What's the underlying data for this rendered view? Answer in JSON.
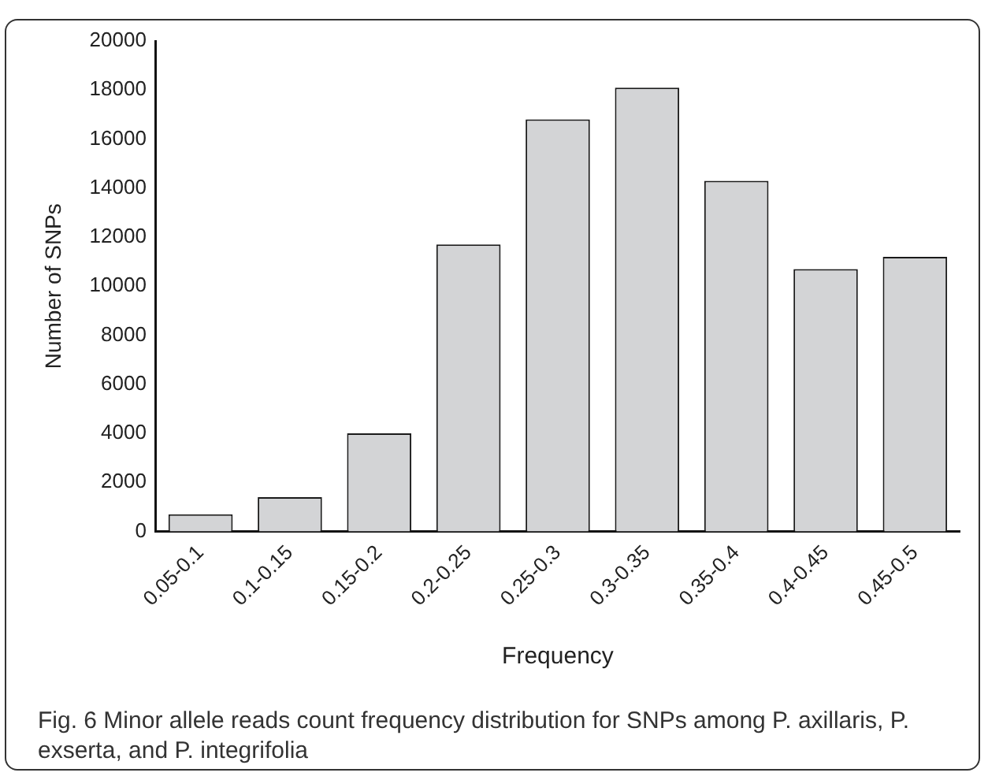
{
  "chart_data": {
    "type": "bar",
    "xlabel": "Frequency",
    "ylabel": "Number of SNPs",
    "categories": [
      "0.05-0.1",
      "0.1-0.15",
      "0.15-0.2",
      "0.2-0.25",
      "0.25-0.3",
      "0.3-0.35",
      "0.35-0.4",
      "0.4-0.45",
      "0.45-0.5"
    ],
    "values": [
      700,
      1400,
      4000,
      11700,
      16800,
      18100,
      14300,
      10700,
      11200
    ],
    "color": "#d3d4d6",
    "ylim": [
      0,
      20000
    ],
    "yticks": [
      0,
      2000,
      4000,
      6000,
      8000,
      10000,
      12000,
      14000,
      16000,
      18000,
      20000
    ],
    "grid": false,
    "legend": false,
    "annotations": [
      "Fig. 6 Minor allele reads count frequency distribution for SNPs among P. axillaris, P. exserta, and P. integrifolia"
    ]
  }
}
